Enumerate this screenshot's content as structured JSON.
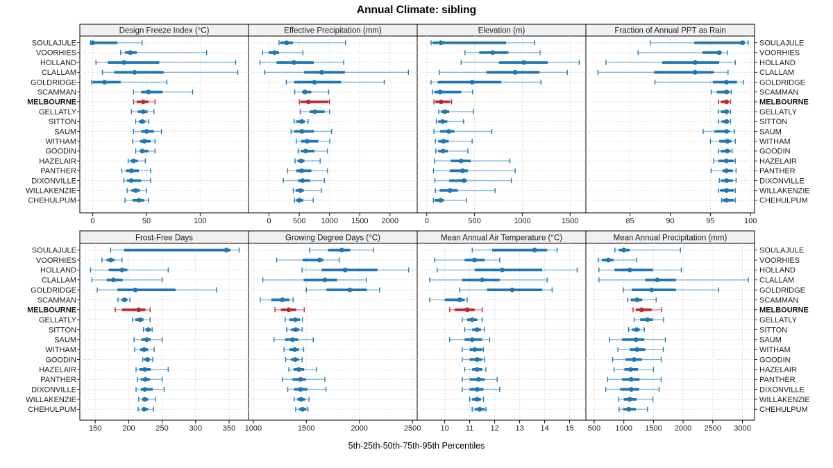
{
  "colors": {
    "series": "#1f77b4",
    "series_light": "rgba(31,119,180,0.5)",
    "highlight": "#c0282d",
    "highlight_light": "rgba(192,40,45,0.5)",
    "strip_bg": "#f0f0f0",
    "grid": "#d4d4d4",
    "frame": "#000000"
  },
  "chart_data": {
    "type": "scatter",
    "variant": "trellis-percentile-errorbar-dotplot",
    "title": "Annual Climate: sibling",
    "xlabel": "5th-25th-50th-75th-95th Percentiles",
    "percentiles": [
      5,
      25,
      50,
      75,
      95
    ],
    "legend_position": "none",
    "grid": "dotted",
    "sites": [
      "SOULAJULE",
      "VOORHIES",
      "HOLLAND",
      "CLALLAM",
      "GOLDRIDGE",
      "SCAMMAN",
      "MELBOURNE",
      "GELLATLY",
      "SITTON",
      "SAUM",
      "WITHAM",
      "GOODIN",
      "HAZELAIR",
      "PANTHER",
      "DIXONVILLE",
      "WILLAKENZIE",
      "CHEHULPUM"
    ],
    "highlight_site": "MELBOURNE",
    "panels": [
      {
        "id": "design-freeze-index",
        "label": "Design Freeze Index (°C)",
        "row": 0,
        "col": 0,
        "xlim": [
          -12,
          145
        ],
        "ticks": [
          0,
          50,
          100
        ],
        "values": [
          [
            -2,
            -1,
            0,
            23,
            46
          ],
          [
            26,
            30,
            35,
            41,
            106
          ],
          [
            3,
            14,
            29,
            62,
            133
          ],
          [
            9,
            20,
            39,
            66,
            135
          ],
          [
            -1,
            0,
            11,
            26,
            69
          ],
          [
            38,
            45,
            52,
            65,
            93
          ],
          [
            38,
            41,
            47,
            52,
            58
          ],
          [
            36,
            42,
            47,
            51,
            57
          ],
          [
            40,
            43,
            46,
            49,
            52
          ],
          [
            38,
            45,
            50,
            57,
            64
          ],
          [
            37,
            44,
            48,
            54,
            58
          ],
          [
            40,
            44,
            46,
            52,
            58
          ],
          [
            33,
            35,
            38,
            42,
            49
          ],
          [
            27,
            31,
            36,
            43,
            54
          ],
          [
            29,
            32,
            36,
            45,
            54
          ],
          [
            32,
            36,
            40,
            44,
            50
          ],
          [
            30,
            37,
            43,
            48,
            52
          ]
        ]
      },
      {
        "id": "effective-precipitation",
        "label": "Effective Precipitation (mm)",
        "row": 0,
        "col": 1,
        "xlim": [
          -340,
          2450
        ],
        "ticks": [
          0,
          500,
          1000,
          1500,
          2000
        ],
        "values": [
          [
            165,
            185,
            290,
            395,
            1265
          ],
          [
            -110,
            -5,
            90,
            165,
            560
          ],
          [
            -150,
            125,
            410,
            740,
            1235
          ],
          [
            -70,
            580,
            870,
            1255,
            2305
          ],
          [
            285,
            415,
            750,
            1190,
            1905
          ],
          [
            425,
            545,
            595,
            700,
            985
          ],
          [
            500,
            520,
            650,
            985,
            1000
          ],
          [
            515,
            670,
            755,
            920,
            1000
          ],
          [
            415,
            450,
            540,
            590,
            645
          ],
          [
            365,
            415,
            545,
            740,
            1035
          ],
          [
            450,
            530,
            630,
            815,
            1005
          ],
          [
            480,
            530,
            605,
            750,
            965
          ],
          [
            430,
            470,
            530,
            585,
            845
          ],
          [
            305,
            450,
            540,
            700,
            965
          ],
          [
            235,
            480,
            555,
            680,
            915
          ],
          [
            400,
            440,
            520,
            575,
            865
          ],
          [
            420,
            445,
            500,
            565,
            730
          ]
        ]
      },
      {
        "id": "elevation",
        "label": "Elevation (m)",
        "row": 0,
        "col": 2,
        "xlim": [
          -100,
          1665
        ],
        "ticks": [
          0,
          500,
          1000,
          1500
        ],
        "values": [
          [
            45,
            60,
            148,
            830,
            1130
          ],
          [
            400,
            550,
            690,
            855,
            1185
          ],
          [
            360,
            755,
            1015,
            1265,
            1595
          ],
          [
            135,
            625,
            925,
            1180,
            1470
          ],
          [
            45,
            115,
            475,
            780,
            1195
          ],
          [
            60,
            80,
            140,
            360,
            480
          ],
          [
            75,
            90,
            150,
            245,
            260
          ],
          [
            125,
            150,
            190,
            235,
            490
          ],
          [
            100,
            120,
            165,
            215,
            385
          ],
          [
            75,
            140,
            230,
            290,
            680
          ],
          [
            90,
            120,
            175,
            230,
            475
          ],
          [
            95,
            120,
            170,
            220,
            430
          ],
          [
            80,
            250,
            360,
            460,
            870
          ],
          [
            70,
            240,
            375,
            430,
            925
          ],
          [
            85,
            235,
            390,
            420,
            885
          ],
          [
            90,
            135,
            245,
            325,
            715
          ],
          [
            70,
            85,
            145,
            180,
            415
          ]
        ]
      },
      {
        "id": "fraction-ppt-rain",
        "label": "Fraction of Annual PPT as Rain",
        "row": 0,
        "col": 3,
        "xlim": [
          79.5,
          100.5
        ],
        "ticks": [
          85,
          90,
          95,
          100
        ],
        "values": [
          [
            87.5,
            93,
            99,
            99.3,
            99.7
          ],
          [
            86,
            94,
            96.1,
            96.4,
            97.1
          ],
          [
            82,
            89,
            93.1,
            96.1,
            98.1
          ],
          [
            81,
            88,
            93.1,
            95.4,
            97.2
          ],
          [
            88.1,
            95.3,
            97,
            98.3,
            99.1
          ],
          [
            95.1,
            95.8,
            97,
            97.4,
            97.6
          ],
          [
            96,
            96.3,
            97,
            97.3,
            97.5
          ],
          [
            96,
            96.3,
            97,
            97.3,
            97.5
          ],
          [
            96,
            96.4,
            97,
            97.3,
            97.5
          ],
          [
            94.1,
            95.5,
            97,
            97.4,
            98
          ],
          [
            95,
            96.1,
            97.1,
            97.6,
            98.1
          ],
          [
            96,
            96.3,
            97.1,
            97.5,
            97.7
          ],
          [
            95.4,
            96,
            97,
            97.9,
            98.1
          ],
          [
            95.1,
            96.5,
            97,
            97.8,
            98.2
          ],
          [
            96.1,
            96.3,
            97,
            97.8,
            98.2
          ],
          [
            96,
            96.2,
            97,
            97.9,
            98.1
          ],
          [
            96.4,
            96.5,
            97,
            97.9,
            98.1
          ]
        ]
      },
      {
        "id": "frost-free-days",
        "label": "Frost-Free Days",
        "row": 1,
        "col": 0,
        "xlim": [
          127,
          379
        ],
        "ticks": [
          150,
          200,
          250,
          300,
          350
        ],
        "values": [
          [
            173,
            193,
            346,
            352,
            365
          ],
          [
            160,
            167,
            173,
            179,
            190
          ],
          [
            143,
            170,
            190,
            198,
            259
          ],
          [
            145,
            167,
            177,
            191,
            250
          ],
          [
            153,
            183,
            210,
            270,
            331
          ],
          [
            184,
            189,
            194,
            198,
            202
          ],
          [
            180,
            190,
            215,
            225,
            232
          ],
          [
            206,
            210,
            217,
            222,
            232
          ],
          [
            222,
            225,
            229,
            233,
            235
          ],
          [
            208,
            219,
            227,
            233,
            250
          ],
          [
            209,
            217,
            223,
            229,
            238
          ],
          [
            221,
            223,
            228,
            232,
            236
          ],
          [
            211,
            216,
            224,
            233,
            259
          ],
          [
            213,
            218,
            225,
            232,
            250
          ],
          [
            211,
            218,
            224,
            236,
            253
          ],
          [
            215,
            220,
            224,
            229,
            240
          ],
          [
            214,
            220,
            223,
            229,
            237
          ]
        ]
      },
      {
        "id": "growing-degree-days",
        "label": "Growing Degree Days (°C)",
        "row": 1,
        "col": 1,
        "xlim": [
          955,
          2545
        ],
        "ticks": [
          1000,
          1500,
          2000,
          2500
        ],
        "values": [
          [
            1530,
            1705,
            1835,
            1915,
            2135
          ],
          [
            1220,
            1465,
            1625,
            1660,
            1810
          ],
          [
            1460,
            1645,
            1865,
            2170,
            2465
          ],
          [
            1090,
            1475,
            1675,
            1790,
            2065
          ],
          [
            1500,
            1690,
            1910,
            2070,
            2190
          ],
          [
            1065,
            1170,
            1275,
            1340,
            1375
          ],
          [
            1205,
            1260,
            1335,
            1405,
            1480
          ],
          [
            1300,
            1340,
            1395,
            1440,
            1465
          ],
          [
            1315,
            1355,
            1400,
            1435,
            1460
          ],
          [
            1195,
            1300,
            1370,
            1425,
            1565
          ],
          [
            1290,
            1340,
            1390,
            1430,
            1475
          ],
          [
            1305,
            1355,
            1395,
            1430,
            1460
          ],
          [
            1335,
            1380,
            1430,
            1480,
            1595
          ],
          [
            1275,
            1370,
            1445,
            1495,
            1675
          ],
          [
            1325,
            1385,
            1445,
            1510,
            1685
          ],
          [
            1385,
            1415,
            1450,
            1490,
            1525
          ],
          [
            1400,
            1430,
            1465,
            1500,
            1515
          ]
        ]
      },
      {
        "id": "mean-annual-air-temperature",
        "label": "Mean Annual Air Temperature (°C)",
        "row": 1,
        "col": 2,
        "xlim": [
          8.9,
          15.65
        ],
        "ticks": [
          10,
          11,
          12,
          13,
          14,
          15
        ],
        "values": [
          [
            11.1,
            11.9,
            13.6,
            14.1,
            14.5
          ],
          [
            9.6,
            10.8,
            11.2,
            11.6,
            12.2
          ],
          [
            9.7,
            11.2,
            12.3,
            13.9,
            15.3
          ],
          [
            9.4,
            10.7,
            11.5,
            12.2,
            14.1
          ],
          [
            10.6,
            11.7,
            12.7,
            13.9,
            14.3
          ],
          [
            9.4,
            10.0,
            10.6,
            10.8,
            10.9
          ],
          [
            10.2,
            10.4,
            10.9,
            11.2,
            11.5
          ],
          [
            10.7,
            10.9,
            11.1,
            11.3,
            11.5
          ],
          [
            10.8,
            11.1,
            11.3,
            11.45,
            11.6
          ],
          [
            10.2,
            10.8,
            11.1,
            11.5,
            11.8
          ],
          [
            10.7,
            11.0,
            11.2,
            11.5,
            11.55
          ],
          [
            10.7,
            11.0,
            11.3,
            11.5,
            11.6
          ],
          [
            10.8,
            11.1,
            11.3,
            11.5,
            11.65
          ],
          [
            10.7,
            11.0,
            11.35,
            11.6,
            12.1
          ],
          [
            10.7,
            11.0,
            11.3,
            11.55,
            12.2
          ],
          [
            11.0,
            11.1,
            11.3,
            11.45,
            11.55
          ],
          [
            11.1,
            11.2,
            11.4,
            11.6,
            11.65
          ]
        ]
      },
      {
        "id": "mean-annual-precipitation",
        "label": "Mean Annual Precipitation (mm)",
        "row": 1,
        "col": 3,
        "xlim": [
          360,
          3205
        ],
        "ticks": [
          500,
          1000,
          1500,
          2000,
          2500,
          3000
        ],
        "values": [
          [
            850,
            915,
            1000,
            1100,
            1955
          ],
          [
            570,
            630,
            740,
            825,
            1215
          ],
          [
            580,
            845,
            1100,
            1490,
            1970
          ],
          [
            580,
            1360,
            1565,
            1880,
            3100
          ],
          [
            990,
            1135,
            1470,
            1880,
            2595
          ],
          [
            1060,
            1115,
            1225,
            1310,
            1545
          ],
          [
            1155,
            1205,
            1300,
            1470,
            1635
          ],
          [
            1175,
            1275,
            1400,
            1490,
            1670
          ],
          [
            1080,
            1140,
            1215,
            1270,
            1345
          ],
          [
            760,
            970,
            1205,
            1345,
            1700
          ],
          [
            900,
            1100,
            1225,
            1360,
            1665
          ],
          [
            810,
            1030,
            1175,
            1305,
            1630
          ],
          [
            835,
            1010,
            1115,
            1240,
            1500
          ],
          [
            725,
            970,
            1125,
            1265,
            1630
          ],
          [
            695,
            940,
            1125,
            1255,
            1595
          ],
          [
            915,
            1000,
            1100,
            1215,
            1490
          ],
          [
            920,
            990,
            1085,
            1205,
            1400
          ]
        ]
      }
    ]
  }
}
